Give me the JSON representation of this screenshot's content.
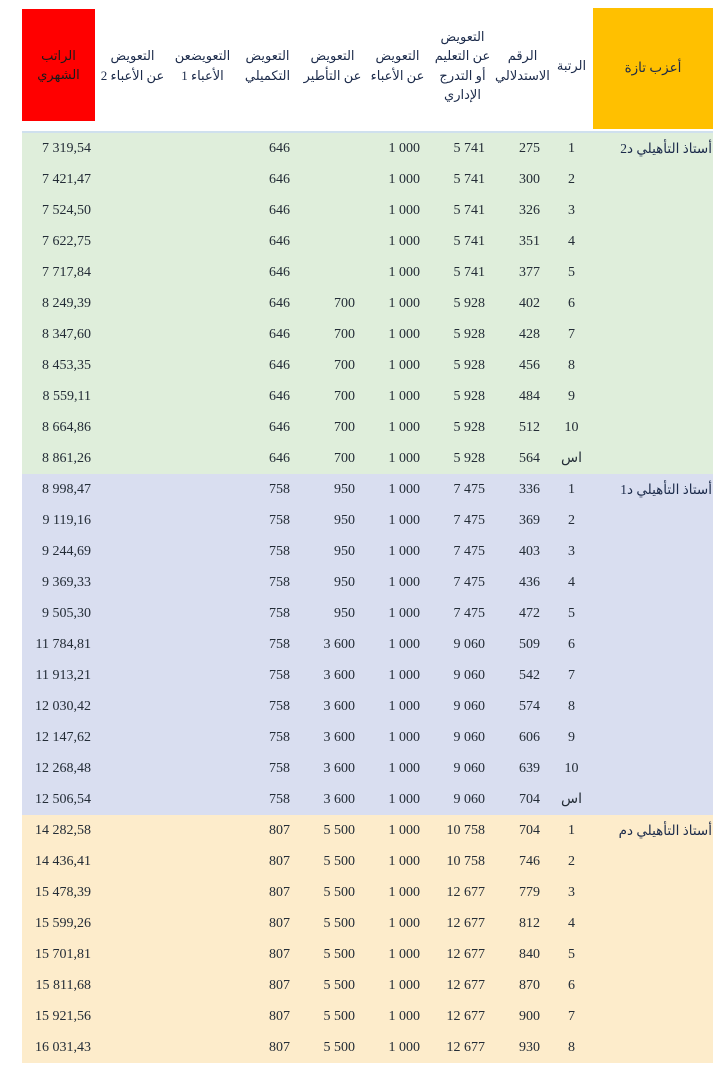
{
  "header": {
    "corner_label": "أعزب تازة",
    "columns": [
      {
        "id": "rank",
        "label": "الرتبة"
      },
      {
        "id": "index",
        "label": "الرقم\nالاستدلالي"
      },
      {
        "id": "education",
        "label": "التعويض\nعن التعليم\nأو التدرج\nالإداري"
      },
      {
        "id": "charges",
        "label": "التعويض\nعن الأعباء"
      },
      {
        "id": "supervision",
        "label": "التعويض\nعن التأطير"
      },
      {
        "id": "complementary",
        "label": "التعويض\nالتكميلي"
      },
      {
        "id": "charges1",
        "label": "التعويضعن\nالأعباء 1"
      },
      {
        "id": "charges2",
        "label": "التعويض\nعن الأعباء 2"
      },
      {
        "id": "salary",
        "label": "الراتب\nالشهري"
      }
    ]
  },
  "colors": {
    "corner_bg": "#ffc000",
    "salary_bg": "#ff0000",
    "header_rule": "#cfe0ee",
    "section_green": "#dfeedb",
    "section_lavender": "#d9def0",
    "section_tan": "#fdeccb"
  },
  "sections": [
    {
      "label": "أستاذ التأهيلي د2",
      "color": "#dfeedb",
      "rows": [
        [
          "1",
          "275",
          "5 741",
          "1 000",
          "",
          "646",
          "",
          "",
          "7 319,54"
        ],
        [
          "2",
          "300",
          "5 741",
          "1 000",
          "",
          "646",
          "",
          "",
          "7 421,47"
        ],
        [
          "3",
          "326",
          "5 741",
          "1 000",
          "",
          "646",
          "",
          "",
          "7 524,50"
        ],
        [
          "4",
          "351",
          "5 741",
          "1 000",
          "",
          "646",
          "",
          "",
          "7 622,75"
        ],
        [
          "5",
          "377",
          "5 741",
          "1 000",
          "",
          "646",
          "",
          "",
          "7 717,84"
        ],
        [
          "6",
          "402",
          "5 928",
          "1 000",
          "700",
          "646",
          "",
          "",
          "8 249,39"
        ],
        [
          "7",
          "428",
          "5 928",
          "1 000",
          "700",
          "646",
          "",
          "",
          "8 347,60"
        ],
        [
          "8",
          "456",
          "5 928",
          "1 000",
          "700",
          "646",
          "",
          "",
          "8 453,35"
        ],
        [
          "9",
          "484",
          "5 928",
          "1 000",
          "700",
          "646",
          "",
          "",
          "8 559,11"
        ],
        [
          "10",
          "512",
          "5 928",
          "1 000",
          "700",
          "646",
          "",
          "",
          "8 664,86"
        ],
        [
          "اس",
          "564",
          "5 928",
          "1 000",
          "700",
          "646",
          "",
          "",
          "8 861,26"
        ]
      ]
    },
    {
      "label": "أستاذ التأهيلي د1",
      "color": "#d9def0",
      "rows": [
        [
          "1",
          "336",
          "7 475",
          "1 000",
          "950",
          "758",
          "",
          "",
          "8 998,47"
        ],
        [
          "2",
          "369",
          "7 475",
          "1 000",
          "950",
          "758",
          "",
          "",
          "9 119,16"
        ],
        [
          "3",
          "403",
          "7 475",
          "1 000",
          "950",
          "758",
          "",
          "",
          "9 244,69"
        ],
        [
          "4",
          "436",
          "7 475",
          "1 000",
          "950",
          "758",
          "",
          "",
          "9 369,33"
        ],
        [
          "5",
          "472",
          "7 475",
          "1 000",
          "950",
          "758",
          "",
          "",
          "9 505,30"
        ],
        [
          "6",
          "509",
          "9 060",
          "1 000",
          "3 600",
          "758",
          "",
          "",
          "11 784,81"
        ],
        [
          "7",
          "542",
          "9 060",
          "1 000",
          "3 600",
          "758",
          "",
          "",
          "11 913,21"
        ],
        [
          "8",
          "574",
          "9 060",
          "1 000",
          "3 600",
          "758",
          "",
          "",
          "12 030,42"
        ],
        [
          "9",
          "606",
          "9 060",
          "1 000",
          "3 600",
          "758",
          "",
          "",
          "12 147,62"
        ],
        [
          "10",
          "639",
          "9 060",
          "1 000",
          "3 600",
          "758",
          "",
          "",
          "12 268,48"
        ],
        [
          "اس",
          "704",
          "9 060",
          "1 000",
          "3 600",
          "758",
          "",
          "",
          "12 506,54"
        ]
      ]
    },
    {
      "label": "أستاذ التأهيلي دم",
      "color": "#fdeccb",
      "rows": [
        [
          "1",
          "704",
          "10 758",
          "1 000",
          "5 500",
          "807",
          "",
          "",
          "14 282,58"
        ],
        [
          "2",
          "746",
          "10 758",
          "1 000",
          "5 500",
          "807",
          "",
          "",
          "14 436,41"
        ],
        [
          "3",
          "779",
          "12 677",
          "1 000",
          "5 500",
          "807",
          "",
          "",
          "15 478,39"
        ],
        [
          "4",
          "812",
          "12 677",
          "1 000",
          "5 500",
          "807",
          "",
          "",
          "15 599,26"
        ],
        [
          "5",
          "840",
          "12 677",
          "1 000",
          "5 500",
          "807",
          "",
          "",
          "15 701,81"
        ],
        [
          "6",
          "870",
          "12 677",
          "1 000",
          "5 500",
          "807",
          "",
          "",
          "15 811,68"
        ],
        [
          "7",
          "900",
          "12 677",
          "1 000",
          "5 500",
          "807",
          "",
          "",
          "15 921,56"
        ],
        [
          "8",
          "930",
          "12 677",
          "1 000",
          "5 500",
          "807",
          "",
          "",
          "16 031,43"
        ]
      ]
    }
  ]
}
